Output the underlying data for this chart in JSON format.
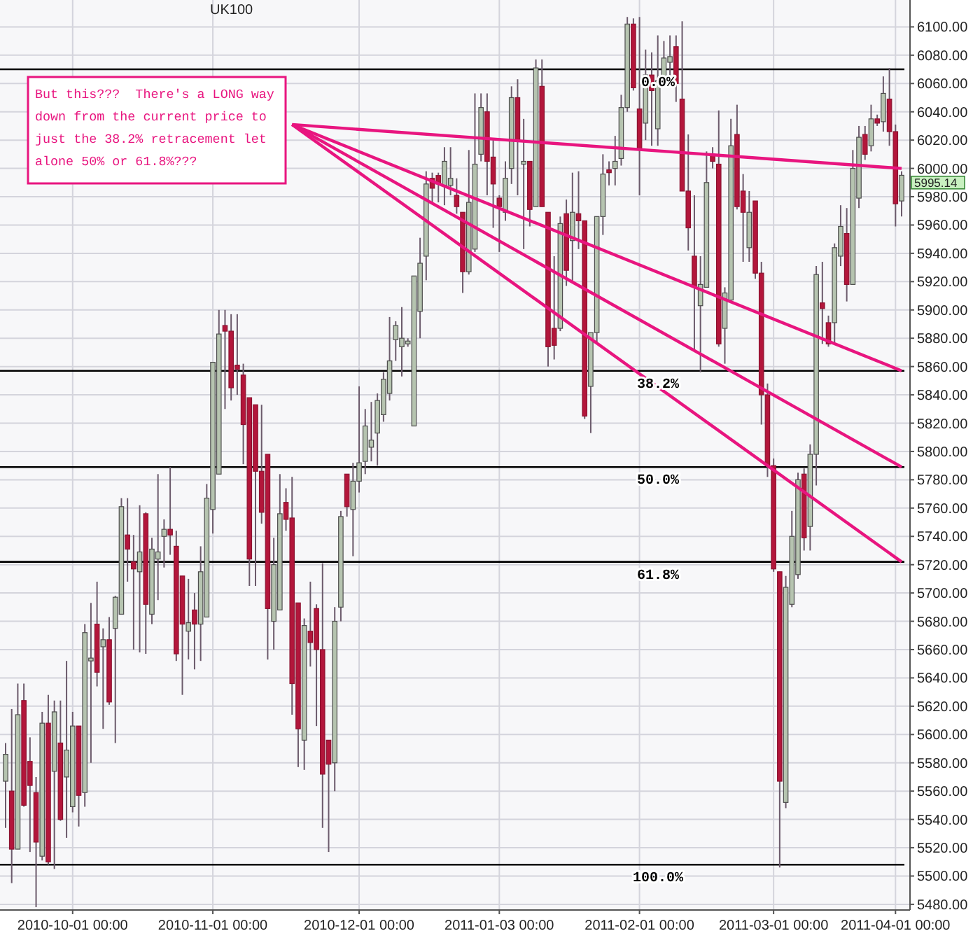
{
  "chart_data": {
    "type": "candlestick",
    "title": "UK100",
    "categories": [
      null,
      null,
      null,
      null,
      null,
      null,
      null,
      null,
      null,
      null,
      null,
      "2010-10-01 00:00",
      null,
      null,
      null,
      null,
      null,
      null,
      null,
      null,
      null,
      null,
      null,
      null,
      null,
      null,
      null,
      null,
      null,
      null,
      null,
      null,
      null,
      null,
      "2010-11-01 00:00",
      null,
      null,
      null,
      null,
      null,
      null,
      null,
      null,
      null,
      null,
      null,
      null,
      null,
      null,
      null,
      null,
      null,
      null,
      null,
      null,
      null,
      null,
      null,
      "2010-12-01 00:00",
      null,
      null,
      null,
      null,
      null,
      null,
      null,
      null,
      null,
      null,
      null,
      null,
      null,
      null,
      null,
      null,
      null,
      null,
      null,
      null,
      null,
      null,
      "2011-01-03 00:00",
      null,
      null,
      null,
      null,
      null,
      null,
      null,
      null,
      null,
      null,
      null,
      null,
      null,
      null,
      null,
      null,
      null,
      null,
      null,
      null,
      null,
      null,
      "2011-02-01 00:00",
      null,
      null,
      null,
      null,
      null,
      null,
      null,
      null,
      null,
      null,
      null,
      null,
      null,
      null,
      null,
      null,
      null,
      null,
      null,
      null,
      null,
      "2011-03-01 00:00",
      null,
      null,
      null,
      null,
      null,
      null,
      null,
      null,
      null,
      null,
      null,
      null,
      null,
      null,
      null,
      null,
      null,
      null,
      null,
      "2011-04-01 00:00",
      null
    ],
    "ohlc": [
      [
        5567,
        5594,
        5534,
        5586
      ],
      [
        5560,
        5618,
        5495,
        5519
      ],
      [
        5519,
        5636,
        5519,
        5614
      ],
      [
        5624,
        5636,
        5549,
        5550
      ],
      [
        5581,
        5598,
        5517,
        5564
      ],
      [
        5559,
        5570,
        5478,
        5524
      ],
      [
        5514,
        5616,
        5511,
        5608
      ],
      [
        5608,
        5628,
        5508,
        5510
      ],
      [
        5574,
        5624,
        5505,
        5616
      ],
      [
        5594,
        5624,
        5539,
        5540
      ],
      [
        5570,
        5652,
        5527,
        5589
      ],
      [
        5549,
        5616,
        5545,
        5606
      ],
      [
        5606,
        5606,
        5535,
        5557
      ],
      [
        5559,
        5678,
        5549,
        5672
      ],
      [
        5652,
        5693,
        5580,
        5654
      ],
      [
        5678,
        5708,
        5634,
        5644
      ],
      [
        5662,
        5675,
        5604,
        5667
      ],
      [
        5667,
        5683,
        5621,
        5623
      ],
      [
        5675,
        5698,
        5594,
        5697
      ],
      [
        5685,
        5767,
        5685,
        5761
      ],
      [
        5741,
        5767,
        5708,
        5731
      ],
      [
        5722,
        5741,
        5660,
        5717
      ],
      [
        5715,
        5762,
        5658,
        5729
      ],
      [
        5756,
        5757,
        5657,
        5692
      ],
      [
        5685,
        5739,
        5678,
        5731
      ],
      [
        5724,
        5784,
        5695,
        5729
      ],
      [
        5740,
        5752,
        5718,
        5745
      ],
      [
        5745,
        5789,
        5727,
        5741
      ],
      [
        5733,
        5744,
        5652,
        5657
      ],
      [
        5712,
        5712,
        5628,
        5678
      ],
      [
        5673,
        5710,
        5653,
        5679
      ],
      [
        5688,
        5700,
        5646,
        5678
      ],
      [
        5678,
        5733,
        5652,
        5715
      ],
      [
        5683,
        5777,
        5683,
        5767
      ],
      [
        5759,
        5863,
        5742,
        5863
      ],
      [
        5784,
        5900,
        5784,
        5883
      ],
      [
        5889,
        5900,
        5830,
        5885
      ],
      [
        5885,
        5897,
        5836,
        5845
      ],
      [
        5861,
        5897,
        5840,
        5858
      ],
      [
        5854,
        5862,
        5791,
        5819
      ],
      [
        5838,
        5838,
        5705,
        5724
      ],
      [
        5833,
        5833,
        5705,
        5786
      ],
      [
        5786,
        5833,
        5749,
        5757
      ],
      [
        5798,
        5798,
        5653,
        5689
      ],
      [
        5680,
        5739,
        5660,
        5720
      ],
      [
        5688,
        5784,
        5688,
        5756
      ],
      [
        5764,
        5774,
        5744,
        5752
      ],
      [
        5753,
        5782,
        5614,
        5636
      ],
      [
        5693,
        5693,
        5577,
        5604
      ],
      [
        5596,
        5682,
        5575,
        5677
      ],
      [
        5673,
        5708,
        5648,
        5665
      ],
      [
        5689,
        5692,
        5606,
        5660
      ],
      [
        5660,
        5721,
        5534,
        5572
      ],
      [
        5596,
        5596,
        5517,
        5579
      ],
      [
        5580,
        5690,
        5560,
        5680
      ],
      [
        5690,
        5758,
        5680,
        5754
      ],
      [
        5784,
        5784,
        5754,
        5761
      ],
      [
        5759,
        5792,
        5726,
        5779
      ],
      [
        5779,
        5846,
        5771,
        5792
      ],
      [
        5793,
        5830,
        5784,
        5818
      ],
      [
        5803,
        5835,
        5793,
        5808
      ],
      [
        5813,
        5841,
        5790,
        5836
      ],
      [
        5826,
        5856,
        5821,
        5851
      ],
      [
        5841,
        5895,
        5836,
        5864
      ],
      [
        5879,
        5892,
        5864,
        5889
      ],
      [
        5874,
        5902,
        5853,
        5880
      ],
      [
        5876,
        5880,
        5874,
        5878
      ],
      [
        5818,
        5924,
        5818,
        5924
      ],
      [
        5899,
        5951,
        5880,
        5933
      ],
      [
        5938,
        5998,
        5921,
        5989
      ],
      [
        5993,
        5997,
        5976,
        5986
      ],
      [
        5995,
        5997,
        5976,
        5989
      ],
      [
        5988,
        6015,
        5974,
        6005
      ],
      [
        5988,
        6015,
        5981,
        5993
      ],
      [
        5981,
        5993,
        5968,
        5973
      ],
      [
        5969,
        5969,
        5912,
        5927
      ],
      [
        5927,
        6013,
        5925,
        5976
      ],
      [
        5943,
        6053,
        5941,
        6003
      ],
      [
        6010,
        6053,
        6005,
        6043
      ],
      [
        6040,
        6053,
        5981,
        6005
      ],
      [
        6008,
        6020,
        5958,
        5989
      ],
      [
        5979,
        5981,
        5941,
        5973
      ],
      [
        5969,
        6005,
        5963,
        5993
      ],
      [
        6000,
        6058,
        5989,
        6050
      ],
      [
        6050,
        6063,
        5981,
        6020
      ],
      [
        6003,
        6035,
        5943,
        6005
      ],
      [
        6005,
        6005,
        5959,
        5971
      ],
      [
        5973,
        6077,
        5973,
        6071
      ],
      [
        6058,
        6077,
        5973,
        5973
      ],
      [
        5969,
        5969,
        5860,
        5874
      ],
      [
        5887,
        5938,
        5865,
        5875
      ],
      [
        5887,
        5966,
        5885,
        5961
      ],
      [
        5968,
        5978,
        5917,
        5928
      ],
      [
        5949,
        5997,
        5919,
        5969
      ],
      [
        5968,
        5998,
        5943,
        5963
      ],
      [
        5963,
        5963,
        5823,
        5825
      ],
      [
        5846,
        5884,
        5813,
        5884
      ],
      [
        5884,
        5966,
        5877,
        5966
      ],
      [
        5966,
        6010,
        5953,
        5996
      ],
      [
        5999,
        6005,
        5988,
        5997
      ],
      [
        6000,
        6023,
        5988,
        6005
      ],
      [
        6007,
        6052,
        6002,
        6043
      ],
      [
        6043,
        6107,
        6040,
        6102
      ],
      [
        6102,
        6106,
        6055,
        6057
      ],
      [
        6042,
        6107,
        5981,
        6013
      ],
      [
        6032,
        6084,
        6020,
        6066
      ],
      [
        6066,
        6082,
        6016,
        6055
      ],
      [
        6028,
        6094,
        6016,
        6062
      ],
      [
        6062,
        6090,
        6058,
        6078
      ],
      [
        6075,
        6094,
        6060,
        6079
      ],
      [
        6086,
        6094,
        6047,
        6060
      ],
      [
        6049,
        6104,
        5984,
        5984
      ],
      [
        5984,
        6024,
        5942,
        5958
      ],
      [
        5938,
        5981,
        5872,
        5916
      ],
      [
        5903,
        5938,
        5856,
        5918
      ],
      [
        5916,
        6012,
        5916,
        5990
      ],
      [
        6010,
        6015,
        6000,
        6005
      ],
      [
        6003,
        6041,
        5874,
        5876
      ],
      [
        5887,
        5916,
        5862,
        5912
      ],
      [
        5907,
        6035,
        5905,
        6016
      ],
      [
        6024,
        6045,
        5971,
        5973
      ],
      [
        5984,
        5996,
        5934,
        5969
      ],
      [
        5944,
        5984,
        5934,
        5969
      ],
      [
        5977,
        5977,
        5922,
        5926
      ],
      [
        5926,
        5934,
        5819,
        5840
      ],
      [
        5840,
        5848,
        5782,
        5790
      ],
      [
        5790,
        5795,
        5715,
        5717
      ],
      [
        5715,
        5715,
        5506,
        5567
      ],
      [
        5552,
        5712,
        5548,
        5704
      ],
      [
        5692,
        5758,
        5690,
        5740
      ],
      [
        5713,
        5785,
        5710,
        5780
      ],
      [
        5784,
        5788,
        5730,
        5739
      ],
      [
        5747,
        5805,
        5730,
        5798
      ],
      [
        5798,
        5931,
        5776,
        5925
      ],
      [
        5905,
        5934,
        5876,
        5901
      ],
      [
        5891,
        5896,
        5874,
        5876
      ],
      [
        5891,
        5947,
        5876,
        5944
      ],
      [
        5938,
        5974,
        5931,
        5959
      ],
      [
        5954,
        5972,
        5906,
        5918
      ],
      [
        5918,
        6013,
        5918,
        6000
      ],
      [
        5979,
        6030,
        5972,
        6022
      ],
      [
        6024,
        6030,
        6006,
        6010
      ],
      [
        6016,
        6045,
        6012,
        6035
      ],
      [
        6035,
        6038,
        6030,
        6032
      ],
      [
        6033,
        6065,
        6026,
        6053
      ],
      [
        6049,
        6071,
        6016,
        6026
      ],
      [
        6026,
        6031,
        5959,
        5975
      ],
      [
        5977,
        5998,
        5966,
        5995.14
      ]
    ],
    "series": [
      {
        "type": "line",
        "color": "#e8157f",
        "values": [
          null,
          null,
          null,
          null,
          null,
          null,
          null,
          null,
          null,
          null,
          null,
          null,
          null,
          null,
          null,
          null,
          null,
          null,
          null,
          null,
          null,
          null,
          null,
          null,
          null,
          null,
          null,
          null,
          null,
          null,
          null,
          null,
          null,
          null,
          null,
          null,
          null,
          null,
          null,
          null,
          null,
          null,
          null,
          null,
          null,
          null,
          null,
          6031,
          null,
          null,
          null,
          null,
          null,
          null,
          null,
          null,
          null,
          null,
          null,
          null,
          null,
          null,
          null,
          null,
          null,
          null,
          null,
          null,
          null,
          null,
          null,
          null,
          null,
          null,
          null,
          null,
          null,
          null,
          null,
          null,
          null,
          null,
          null,
          null,
          null,
          null,
          null,
          null,
          null,
          null,
          null,
          null,
          null,
          null,
          null,
          null,
          null,
          null,
          null,
          null,
          null,
          null,
          null,
          null,
          null,
          null,
          null,
          null,
          null,
          null,
          null,
          null,
          null,
          null,
          null,
          null,
          null,
          null,
          null,
          null,
          null,
          null,
          null,
          null,
          null,
          null,
          null,
          null,
          null,
          null,
          null,
          null,
          null,
          null,
          null,
          null,
          null,
          null,
          null,
          null,
          null,
          null,
          null,
          null,
          null,
          null,
          null,
          6000
        ]
      },
      {
        "type": "line",
        "color": "#e8157f",
        "values": [
          null,
          null,
          null,
          null,
          null,
          null,
          null,
          null,
          null,
          null,
          null,
          null,
          null,
          null,
          null,
          null,
          null,
          null,
          null,
          null,
          null,
          null,
          null,
          null,
          null,
          null,
          null,
          null,
          null,
          null,
          null,
          null,
          null,
          null,
          null,
          null,
          null,
          null,
          null,
          null,
          null,
          null,
          null,
          null,
          null,
          null,
          null,
          6031,
          null,
          null,
          null,
          null,
          null,
          null,
          null,
          null,
          null,
          null,
          null,
          null,
          null,
          null,
          null,
          null,
          null,
          null,
          null,
          null,
          null,
          null,
          null,
          null,
          null,
          null,
          null,
          null,
          null,
          null,
          null,
          null,
          null,
          null,
          null,
          null,
          null,
          null,
          null,
          null,
          null,
          null,
          null,
          null,
          null,
          null,
          null,
          null,
          null,
          null,
          null,
          null,
          null,
          null,
          null,
          null,
          null,
          null,
          null,
          null,
          null,
          null,
          null,
          null,
          null,
          null,
          null,
          null,
          null,
          null,
          null,
          null,
          null,
          null,
          null,
          null,
          null,
          null,
          null,
          null,
          null,
          null,
          null,
          null,
          null,
          null,
          null,
          null,
          null,
          null,
          null,
          null,
          null,
          null,
          null,
          null,
          null,
          null,
          null,
          5857
        ]
      },
      {
        "type": "line",
        "color": "#e8157f",
        "values": [
          null,
          null,
          null,
          null,
          null,
          null,
          null,
          null,
          null,
          null,
          null,
          null,
          null,
          null,
          null,
          null,
          null,
          null,
          null,
          null,
          null,
          null,
          null,
          null,
          null,
          null,
          null,
          null,
          null,
          null,
          null,
          null,
          null,
          null,
          null,
          null,
          null,
          null,
          null,
          null,
          null,
          null,
          null,
          null,
          null,
          null,
          null,
          6031,
          null,
          null,
          null,
          null,
          null,
          null,
          null,
          null,
          null,
          null,
          null,
          null,
          null,
          null,
          null,
          null,
          null,
          null,
          null,
          null,
          null,
          null,
          null,
          null,
          null,
          null,
          null,
          null,
          null,
          null,
          null,
          null,
          null,
          null,
          null,
          null,
          null,
          null,
          null,
          null,
          null,
          null,
          null,
          null,
          null,
          null,
          null,
          null,
          null,
          null,
          null,
          null,
          null,
          null,
          null,
          null,
          null,
          null,
          null,
          null,
          null,
          null,
          null,
          null,
          null,
          null,
          null,
          null,
          null,
          null,
          null,
          null,
          null,
          null,
          null,
          null,
          null,
          null,
          null,
          null,
          null,
          null,
          null,
          null,
          null,
          null,
          null,
          null,
          null,
          null,
          null,
          null,
          null,
          null,
          null,
          null,
          null,
          null,
          null,
          5789
        ]
      },
      {
        "type": "line",
        "color": "#e8157f",
        "values": [
          null,
          null,
          null,
          null,
          null,
          null,
          null,
          null,
          null,
          null,
          null,
          null,
          null,
          null,
          null,
          null,
          null,
          null,
          null,
          null,
          null,
          null,
          null,
          null,
          null,
          null,
          null,
          null,
          null,
          null,
          null,
          null,
          null,
          null,
          null,
          null,
          null,
          null,
          null,
          null,
          null,
          null,
          null,
          null,
          null,
          null,
          null,
          6031,
          null,
          null,
          null,
          null,
          null,
          null,
          null,
          null,
          null,
          null,
          null,
          null,
          null,
          null,
          null,
          null,
          null,
          null,
          null,
          null,
          null,
          null,
          null,
          null,
          null,
          null,
          null,
          null,
          null,
          null,
          null,
          null,
          null,
          null,
          null,
          null,
          null,
          null,
          null,
          null,
          null,
          null,
          null,
          null,
          null,
          null,
          null,
          null,
          null,
          null,
          null,
          null,
          null,
          null,
          null,
          null,
          null,
          null,
          null,
          null,
          null,
          null,
          null,
          null,
          null,
          null,
          null,
          null,
          null,
          null,
          null,
          null,
          null,
          null,
          null,
          null,
          null,
          null,
          null,
          null,
          null,
          null,
          null,
          null,
          null,
          null,
          null,
          null,
          null,
          null,
          null,
          null,
          null,
          null,
          null,
          null,
          null,
          null,
          null,
          5722
        ]
      }
    ],
    "ylim": [
      5476,
      6119
    ],
    "yticks": [
      {
        "value": 5480,
        "label": "5480.00"
      },
      {
        "value": 5500,
        "label": "5500.00"
      },
      {
        "value": 5520,
        "label": "5520.00"
      },
      {
        "value": 5540,
        "label": "5540.00"
      },
      {
        "value": 5560,
        "label": "5560.00"
      },
      {
        "value": 5580,
        "label": "5580.00"
      },
      {
        "value": 5600,
        "label": "5600.00"
      },
      {
        "value": 5620,
        "label": "5620.00"
      },
      {
        "value": 5640,
        "label": "5640.00"
      },
      {
        "value": 5660,
        "label": "5660.00"
      },
      {
        "value": 5680,
        "label": "5680.00"
      },
      {
        "value": 5700,
        "label": "5700.00"
      },
      {
        "value": 5720,
        "label": "5720.00"
      },
      {
        "value": 5740,
        "label": "5740.00"
      },
      {
        "value": 5760,
        "label": "5760.00"
      },
      {
        "value": 5780,
        "label": "5780.00"
      },
      {
        "value": 5800,
        "label": "5800.00"
      },
      {
        "value": 5820,
        "label": "5820.00"
      },
      {
        "value": 5840,
        "label": "5840.00"
      },
      {
        "value": 5860,
        "label": "5860.00"
      },
      {
        "value": 5880,
        "label": "5880.00"
      },
      {
        "value": 5900,
        "label": "5900.00"
      },
      {
        "value": 5920,
        "label": "5920.00"
      },
      {
        "value": 5940,
        "label": "5940.00"
      },
      {
        "value": 5960,
        "label": "5960.00"
      },
      {
        "value": 5980,
        "label": "5980.00"
      },
      {
        "value": 6000,
        "label": "6000.00"
      },
      {
        "value": 6020,
        "label": "6020.00"
      },
      {
        "value": 6040,
        "label": "6040.00"
      },
      {
        "value": 6060,
        "label": "6060.00"
      },
      {
        "value": 6080,
        "label": "6080.00"
      },
      {
        "value": 6100,
        "label": "6100.00"
      }
    ],
    "grid": true,
    "ref_lines": [
      {
        "axis": "y",
        "value": 6070,
        "color": "#000000"
      },
      {
        "axis": "y",
        "value": 5857,
        "color": "#000000"
      },
      {
        "axis": "y",
        "value": 5789,
        "color": "#000000"
      },
      {
        "axis": "y",
        "value": 5722,
        "color": "#000000"
      },
      {
        "axis": "y",
        "value": 5508,
        "color": "#000000"
      }
    ],
    "annotations": [
      "But this???  There's a LONG way down from the current price to just the 38.2% retracement let alone 50% or 61.8%???",
      {
        "text": "0.0%",
        "y": 6070
      },
      {
        "text": "38.2%",
        "y": 5857
      },
      {
        "text": "50.0%",
        "y": 5789
      },
      {
        "text": "61.8%",
        "y": 5722
      },
      {
        "text": "100.0%",
        "y": 5508
      },
      "5995.14"
    ]
  }
}
